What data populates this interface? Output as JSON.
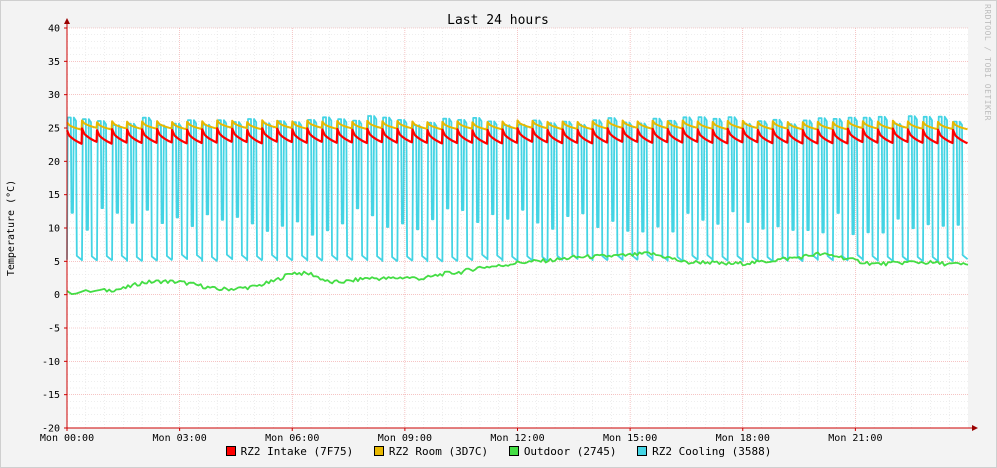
{
  "chart_data": {
    "type": "line",
    "title": "Last 24 hours",
    "ylabel": "Temperature (°C)",
    "watermark": "RRDTOOL / TOBI OETIKER",
    "ylim": [
      -20,
      40
    ],
    "yticks": [
      40,
      35,
      30,
      25,
      20,
      15,
      10,
      5,
      0,
      -5,
      -10,
      -15,
      -20
    ],
    "xlim": [
      0,
      24
    ],
    "xticks": [
      {
        "h": 0,
        "label": "Mon 00:00"
      },
      {
        "h": 3,
        "label": "Mon 03:00"
      },
      {
        "h": 6,
        "label": "Mon 06:00"
      },
      {
        "h": 9,
        "label": "Mon 09:00"
      },
      {
        "h": 12,
        "label": "Mon 12:00"
      },
      {
        "h": 15,
        "label": "Mon 15:00"
      },
      {
        "h": 18,
        "label": "Mon 18:00"
      },
      {
        "h": 21,
        "label": "Mon 21:00"
      }
    ],
    "cycle_hours": 0.4,
    "series": [
      {
        "name": "RZ2 Intake (7F75)",
        "color": "#ff0000",
        "kind": "sawtooth",
        "high": 24.8,
        "low": 22.8
      },
      {
        "name": "RZ2 Room (3D7C)",
        "color": "#e8b800",
        "kind": "sawtooth",
        "high": 26.0,
        "low": 24.9
      },
      {
        "name": "Outdoor (2745)",
        "color": "#44dd44",
        "kind": "line",
        "x": [
          0,
          1,
          1.5,
          2,
          2.5,
          3,
          3.5,
          4,
          4.5,
          5,
          5.5,
          6,
          6.5,
          7,
          7.5,
          8,
          8.5,
          9,
          9.5,
          10,
          10.5,
          11,
          11.5,
          12,
          12.5,
          13,
          13.5,
          14,
          14.5,
          15,
          15.5,
          16,
          16.5,
          17,
          17.5,
          18,
          18.5,
          19,
          19.5,
          20,
          20.5,
          21,
          21.5,
          22,
          22.5,
          23,
          23.5,
          24
        ],
        "values": [
          0.3,
          0.6,
          0.9,
          1.8,
          2.0,
          1.9,
          1.4,
          0.8,
          0.9,
          1.2,
          2.0,
          3.3,
          3.1,
          1.8,
          2.0,
          2.5,
          2.4,
          2.6,
          2.4,
          3.1,
          3.4,
          4.1,
          4.3,
          4.8,
          5.0,
          5.2,
          5.6,
          5.7,
          5.8,
          5.9,
          6.2,
          5.6,
          4.8,
          4.9,
          4.6,
          4.7,
          4.9,
          5.3,
          5.6,
          6.1,
          5.8,
          5.1,
          4.6,
          4.7,
          4.9,
          4.8,
          4.6,
          4.5
        ]
      },
      {
        "name": "RZ2 Cooling (3588)",
        "color": "#44d4e4",
        "kind": "square",
        "high": 26.8,
        "low": 5.0
      }
    ]
  }
}
